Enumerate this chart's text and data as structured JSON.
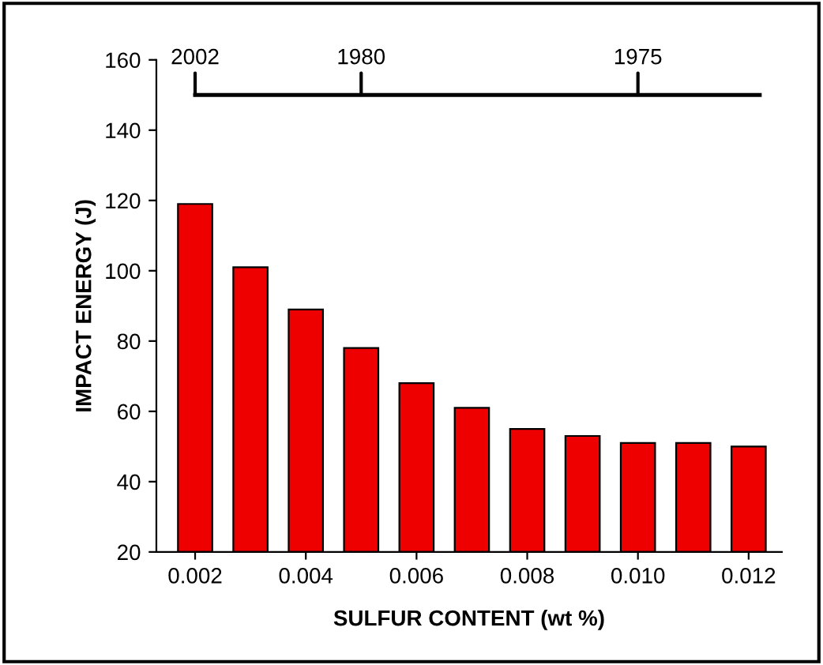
{
  "chart_data": {
    "type": "bar",
    "xlabel": "SULFUR CONTENT (wt %)",
    "ylabel": "IMPACT ENERGY (J)",
    "x": [
      0.002,
      0.003,
      0.004,
      0.005,
      0.006,
      0.007,
      0.008,
      0.009,
      0.01,
      0.011,
      0.012
    ],
    "series": [
      {
        "color": "#ee0000",
        "values": [
          119,
          101,
          89,
          78,
          68,
          61,
          55,
          53,
          51,
          51,
          50
        ]
      },
      {
        "type": "line",
        "color": "#000000",
        "x": [
          0.002,
          0.0122
        ],
        "values": [
          150,
          150
        ]
      }
    ],
    "annotations": [
      {
        "text": "2002",
        "x": 0.002,
        "y": 150
      },
      {
        "text": "1980",
        "x": 0.005,
        "y": 150
      },
      {
        "text": "1975",
        "x": 0.01,
        "y": 150
      }
    ],
    "xlim": [
      0.0013,
      0.0126
    ],
    "xticks": [
      {
        "value": 0.002,
        "label": "0.002"
      },
      {
        "value": 0.004,
        "label": "0.004"
      },
      {
        "value": 0.006,
        "label": "0.006"
      },
      {
        "value": 0.008,
        "label": "0.008"
      },
      {
        "value": 0.01,
        "label": "0.010"
      },
      {
        "value": 0.012,
        "label": "0.012"
      }
    ],
    "ylim": [
      20,
      160
    ],
    "yticks": [
      20,
      40,
      60,
      80,
      100,
      120,
      140,
      160
    ],
    "grid": false
  }
}
